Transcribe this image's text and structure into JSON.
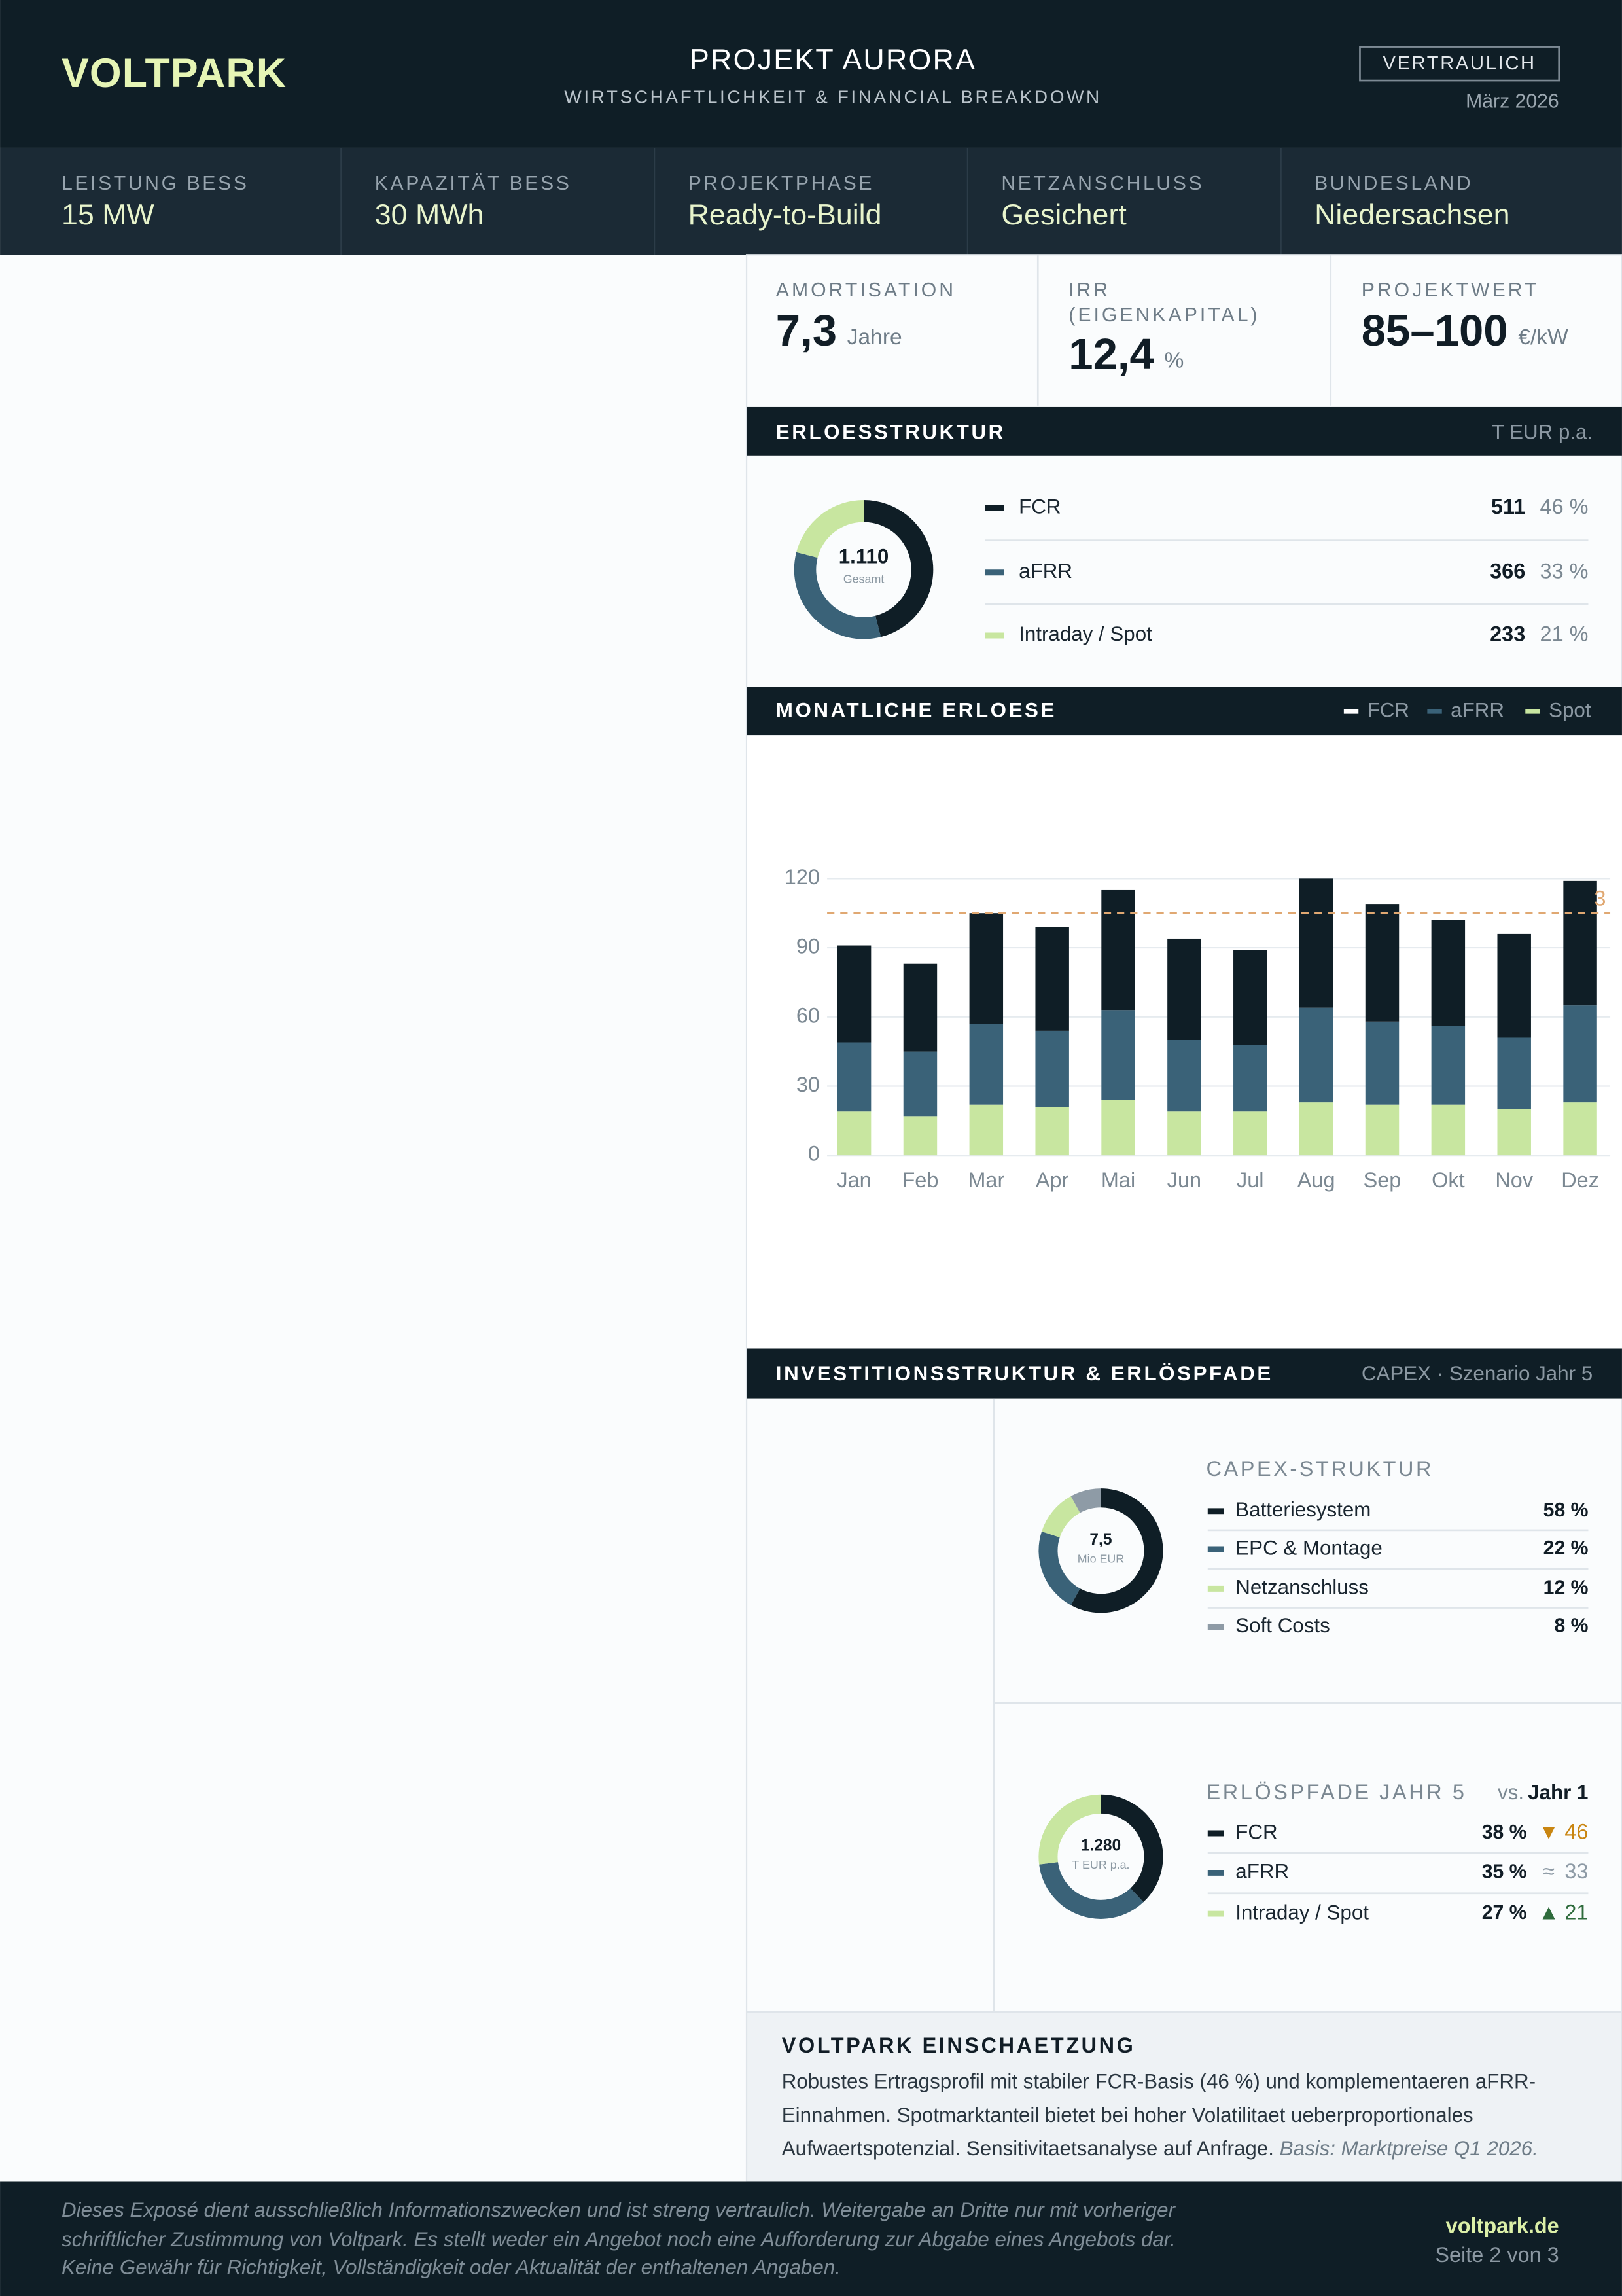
{
  "header": {
    "logo": "VOLTPARK",
    "title": "PROJEKT AURORA",
    "subtitle": "WIRTSCHAFTLICHKEIT & FINANCIAL BREAKDOWN",
    "badge": "VERTRAULICH",
    "date": "März 2026"
  },
  "kpis": [
    {
      "label": "LEISTUNG BESS",
      "value": "15 MW"
    },
    {
      "label": "KAPAZITÄT BESS",
      "value": "30 MWh"
    },
    {
      "label": "PROJEKTPHASE",
      "value": "Ready-to-Build"
    },
    {
      "label": "NETZANSCHLUSS",
      "value": "Gesichert"
    },
    {
      "label": "BUNDESLAND",
      "value": "Niedersachsen"
    }
  ],
  "metrics": [
    {
      "label": "AMORTISATION",
      "value": "7,3",
      "unit": "Jahre"
    },
    {
      "label": "IRR",
      "label_2": "(EIGENKAPITAL)",
      "value": "12,4",
      "unit": "%"
    },
    {
      "label": "PROJEKTWERT",
      "value": "85–100",
      "unit": "€/kW"
    }
  ],
  "investment_section": {
    "title": "INVESTITIONSSTRUKTUR & ERLÖSPFADE",
    "note": "CAPEX · Szenario Jahr 5"
  },
  "chart_data": [
    {
      "type": "donut",
      "title": "ERLOESSTRUKTUR",
      "note": "T EUR p.a.",
      "center_value": 1110,
      "center_value_label": "1.110",
      "center_label": "Gesamt",
      "categories": [
        "FCR",
        "aFRR",
        "Intraday / Spot"
      ],
      "values": [
        511,
        366,
        233
      ],
      "colors": [
        "#0f1e26",
        "#3a6278",
        "#c8e6a0"
      ],
      "shares": [
        46,
        33,
        21
      ],
      "share_labels": [
        "46 %",
        "33 %",
        "21 %"
      ]
    },
    {
      "type": "bar",
      "stacked": true,
      "title": "MONATLICHE ERLOESE",
      "categories": [
        "Jan",
        "Feb",
        "Mar",
        "Apr",
        "Mai",
        "Jun",
        "Jul",
        "Aug",
        "Sep",
        "Okt",
        "Nov",
        "Dez"
      ],
      "series": [
        {
          "name": "FCR",
          "color": "#0f1e26",
          "values": [
            42,
            38,
            48,
            45,
            52,
            44,
            41,
            56,
            51,
            46,
            45,
            54
          ]
        },
        {
          "name": "aFRR",
          "color": "#3a6278",
          "values": [
            30,
            28,
            35,
            33,
            39,
            31,
            29,
            41,
            36,
            34,
            31,
            42
          ]
        },
        {
          "name": "Spot",
          "color": "#c8e6a0",
          "values": [
            19,
            17,
            22,
            21,
            24,
            19,
            19,
            23,
            22,
            22,
            20,
            23
          ]
        }
      ],
      "ylim": [
        0,
        120
      ],
      "yticks": [
        0,
        30,
        60,
        90,
        120
      ],
      "grid": true,
      "reference_line": {
        "value": 105,
        "label": "3",
        "color": "#e0a872"
      }
    },
    {
      "type": "donut",
      "title": "CAPEX-STRUKTUR",
      "center_value": 7.5,
      "center_value_label": "7,5",
      "center_label": "Mio EUR",
      "categories": [
        "Batteriesystem",
        "EPC & Montage",
        "Netzanschluss",
        "Soft Costs"
      ],
      "values": [
        58,
        22,
        12,
        8
      ],
      "value_labels": [
        "58 %",
        "22 %",
        "12 %",
        "8 %"
      ],
      "colors": [
        "#0f1e26",
        "#3a6278",
        "#c8e6a0",
        "#8e9ba6"
      ]
    },
    {
      "type": "donut",
      "title": "ERLÖSPFADE JAHR 5",
      "comparison_prefix": "vs.",
      "comparison": "Jahr 1",
      "center_value": 1280,
      "center_value_label": "1.280",
      "center_label": "T EUR p.a.",
      "categories": [
        "FCR",
        "aFRR",
        "Intraday / Spot"
      ],
      "values": [
        38,
        35,
        27
      ],
      "value_labels": [
        "38 %",
        "35 %",
        "27 %"
      ],
      "colors": [
        "#0f1e26",
        "#3a6278",
        "#c8e6a0"
      ],
      "comparison_values": [
        46,
        33,
        21
      ],
      "trend_symbols": [
        "▼",
        "≈",
        "▲"
      ],
      "trend_colors": [
        "#c98612",
        "#8e9ba6",
        "#2e6b3c"
      ]
    }
  ],
  "assessment": {
    "title": "VOLTPARK EINSCHAETZUNG",
    "text": "Robustes Ertragsprofil mit stabiler FCR-Basis (46 %) und komplementaeren aFRR-Einnahmen. Spotmarktanteil bietet bei hoher Volatilitaet ueberproportionales Aufwaertspotenzial. Sensitivitaetsanalyse auf Anfrage.",
    "basis": "Basis: Marktpreise Q1 2026."
  },
  "footer": {
    "disclaimer": "Dieses Exposé dient ausschließlich Informationszwecken und ist streng vertraulich. Weitergabe an Dritte nur mit vorheriger schriftlicher Zustimmung von Voltpark. Es stellt weder ein Angebot noch eine Aufforderung zur Abgabe eines Angebots dar. Keine Gewähr für Richtigkeit, Vollständigkeit oder Aktualität der enthaltenen Angaben.",
    "website": "voltpark.de",
    "page": "Seite 2 von 3"
  }
}
